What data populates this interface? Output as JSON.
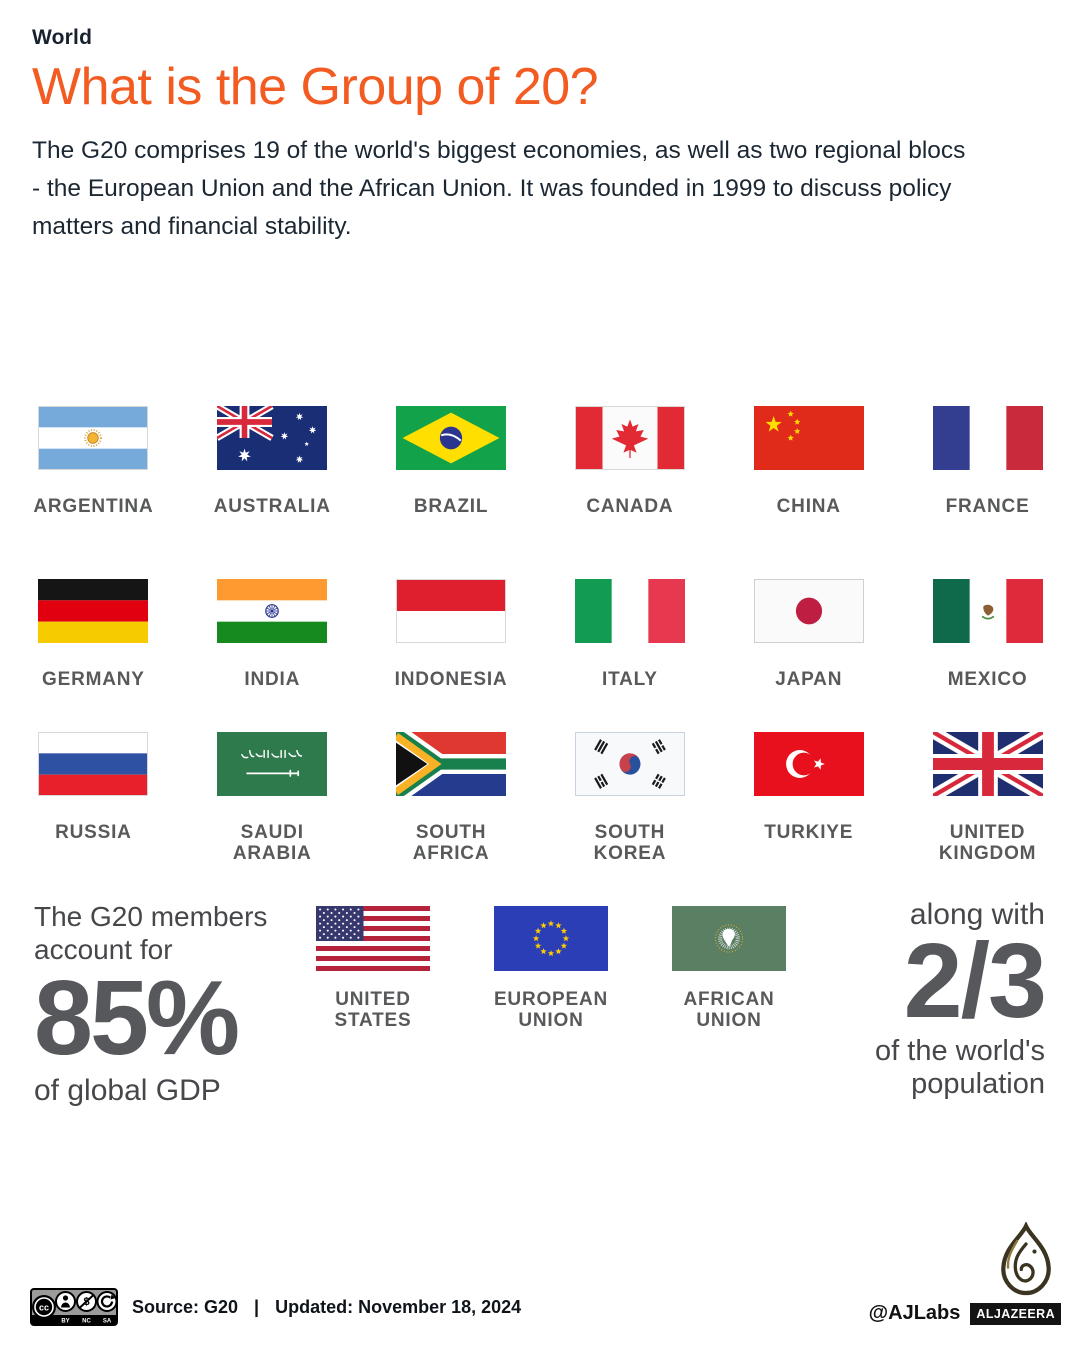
{
  "header": {
    "kicker": "World",
    "title": "What is the Group of 20?",
    "description_lines": [
      "The G20 comprises 19 of the world's biggest economies, as well as two regional blocs",
      "- the European Union and the African Union. It was founded in 1999 to discuss policy",
      "matters and financial stability."
    ]
  },
  "flag_grid": {
    "rows": [
      [
        {
          "id": "argentina",
          "label": "ARGENTINA"
        },
        {
          "id": "australia",
          "label": "AUSTRALIA"
        },
        {
          "id": "brazil",
          "label": "BRAZIL"
        },
        {
          "id": "canada",
          "label": "CANADA"
        },
        {
          "id": "china",
          "label": "CHINA"
        },
        {
          "id": "france",
          "label": "FRANCE"
        }
      ],
      [
        {
          "id": "germany",
          "label": "GERMANY"
        },
        {
          "id": "india",
          "label": "INDIA"
        },
        {
          "id": "indonesia",
          "label": "INDONESIA"
        },
        {
          "id": "italy",
          "label": "ITALY"
        },
        {
          "id": "japan",
          "label": "JAPAN"
        },
        {
          "id": "mexico",
          "label": "MEXICO"
        }
      ],
      [
        {
          "id": "russia",
          "label": "RUSSIA"
        },
        {
          "id": "saudi-arabia",
          "label": "SAUDI\nARABIA"
        },
        {
          "id": "south-africa",
          "label": "SOUTH\nAFRICA"
        },
        {
          "id": "south-korea",
          "label": "SOUTH\nKOREA"
        },
        {
          "id": "turkiye",
          "label": "TURKIYE"
        },
        {
          "id": "united-kingdom",
          "label": "UNITED\nKINGDOM"
        }
      ]
    ]
  },
  "bottom": {
    "gdp": {
      "intro": "The G20 members account for",
      "value": "85%",
      "suffix": "of global GDP"
    },
    "flags": [
      {
        "id": "united-states",
        "label": "UNITED\nSTATES"
      },
      {
        "id": "european-union",
        "label": "EUROPEAN\nUNION"
      },
      {
        "id": "african-union",
        "label": "AFRICAN\nUNION"
      }
    ],
    "population": {
      "intro": "along with",
      "value": "2/3",
      "suffix": "of the world's population"
    }
  },
  "footer": {
    "license": {
      "badge": "cc",
      "labels": [
        "BY",
        "NC",
        "SA"
      ]
    },
    "source": "Source: G20",
    "separator": "|",
    "updated": "Updated: November 18, 2024",
    "credit": "@AJLabs",
    "brand": "ALJAZEERA"
  },
  "colors": {
    "accent_orange": "#F25B21",
    "heading_dark": "#16222E",
    "body_dark": "#1B2733",
    "label_gray": "#58595B",
    "stat_gray": "#56585B"
  }
}
